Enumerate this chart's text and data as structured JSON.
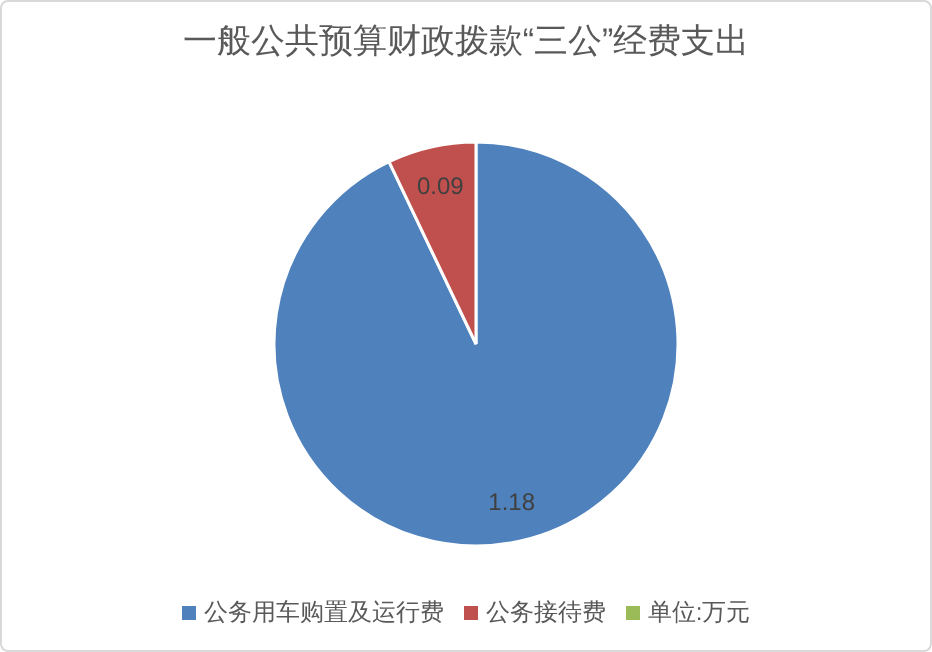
{
  "chart_data": {
    "type": "pie",
    "title": "一般公共预算财政拨款“三公”经费支出",
    "categories": [
      "公务用车购置及运行费",
      "公务接待费",
      "单位:万元"
    ],
    "values": [
      1.18,
      0.09,
      0
    ],
    "colors": [
      "#4f81bd",
      "#c0504d",
      "#9bbb59"
    ],
    "data_labels": true,
    "legend": "bottom"
  }
}
